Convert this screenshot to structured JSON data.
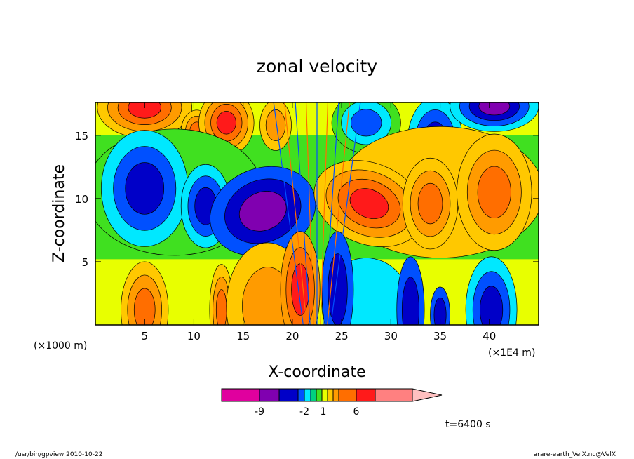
{
  "chart_data": {
    "type": "heatmap",
    "title": "zonal velocity",
    "xlabel": "X-coordinate",
    "ylabel": "Z-coordinate",
    "x_unit_left": "(×1000 m)",
    "x_unit_right": "(×1E4 m)",
    "xlim": [
      0,
      45
    ],
    "ylim": [
      0,
      17.6
    ],
    "x_ticks": [
      "5",
      "10",
      "15",
      "20",
      "25",
      "30",
      "35",
      "40"
    ],
    "x_tick_values": [
      5,
      10,
      15,
      20,
      25,
      30,
      35,
      40
    ],
    "y_ticks": [
      "5",
      "10",
      "15"
    ],
    "y_tick_values": [
      5,
      10,
      15
    ],
    "colorbar": {
      "colors": [
        "#e0009e",
        "#8000b0",
        "#0000c8",
        "#0050ff",
        "#00e8ff",
        "#00d080",
        "#40e020",
        "#e8ff00",
        "#ffc800",
        "#ff9b00",
        "#ff6e00",
        "#ff1a1a",
        "#ff8080",
        "#ffc0c0"
      ],
      "labels": [
        "-9",
        "-2",
        "1",
        "6"
      ],
      "label_positions_in_levels": [
        -9,
        -2,
        1,
        6
      ]
    },
    "time_label": "t=6400 s",
    "footer_left": "/usr/bin/gpview  2010-10-22",
    "footer_right": "arare-earth_VelX.nc@VelX"
  }
}
